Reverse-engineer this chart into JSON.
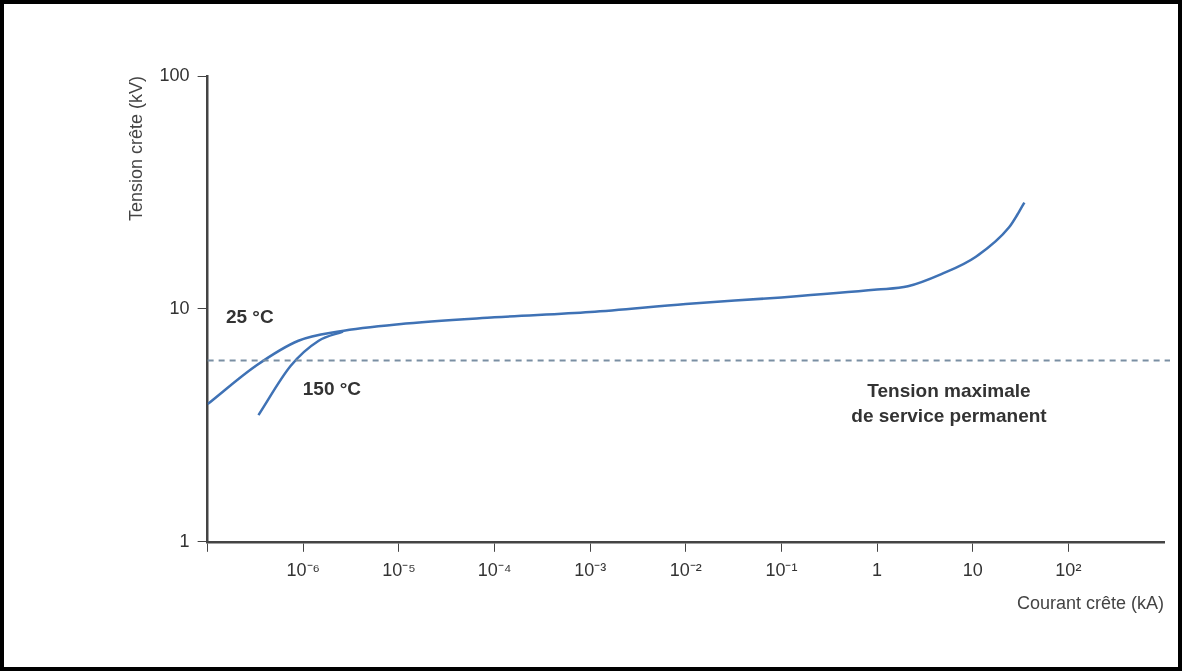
{
  "chart_data": {
    "type": "line",
    "xlabel": "Courant crête (kA)",
    "ylabel": "Tension crête (kV)",
    "log": "xy",
    "xlim": [
      1e-07,
      1000
    ],
    "ylim": [
      1,
      100
    ],
    "xticks": [
      {
        "value": 1e-07,
        "label": null
      },
      {
        "value": 1e-06,
        "label": "10⁻⁶"
      },
      {
        "value": 1e-05,
        "label": "10⁻⁵"
      },
      {
        "value": 0.0001,
        "label": "10⁻⁴"
      },
      {
        "value": 0.001,
        "label": "10⁻³"
      },
      {
        "value": 0.01,
        "label": "10⁻²"
      },
      {
        "value": 0.1,
        "label": "10⁻¹"
      },
      1,
      10,
      {
        "value": 100,
        "label": "10²"
      }
    ],
    "yticks": [
      1,
      10,
      100
    ],
    "series": [
      {
        "name": "25 °C",
        "color": "#3f72b5",
        "x": [
          1e-07,
          3.2e-07,
          8.9e-07,
          2.35e-06,
          1e-05,
          0.0001,
          0.001,
          0.01,
          0.1,
          1,
          2.1,
          4.7,
          10.7,
          24,
          34.7
        ],
        "values": [
          3.9,
          5.7,
          7.3,
          8,
          8.6,
          9.2,
          9.7,
          10.5,
          11.2,
          12.1,
          12.5,
          14.1,
          16.7,
          22.4,
          28.6
        ]
      },
      {
        "name": "150 °C",
        "color": "#3f72b5",
        "x": [
          3.4e-07,
          7.4e-07,
          1.45e-06,
          2.6e-06
        ],
        "values": [
          3.5,
          5.7,
          7.3,
          8
        ]
      }
    ],
    "ref_lines": [
      {
        "axis": "y",
        "value": 6,
        "label": "Tension maximale\nde service permanent",
        "color": "#7a8fa3",
        "line_style": "dashed"
      }
    ],
    "grid": false,
    "legend": false,
    "marker": "none",
    "line_style": "solid"
  }
}
